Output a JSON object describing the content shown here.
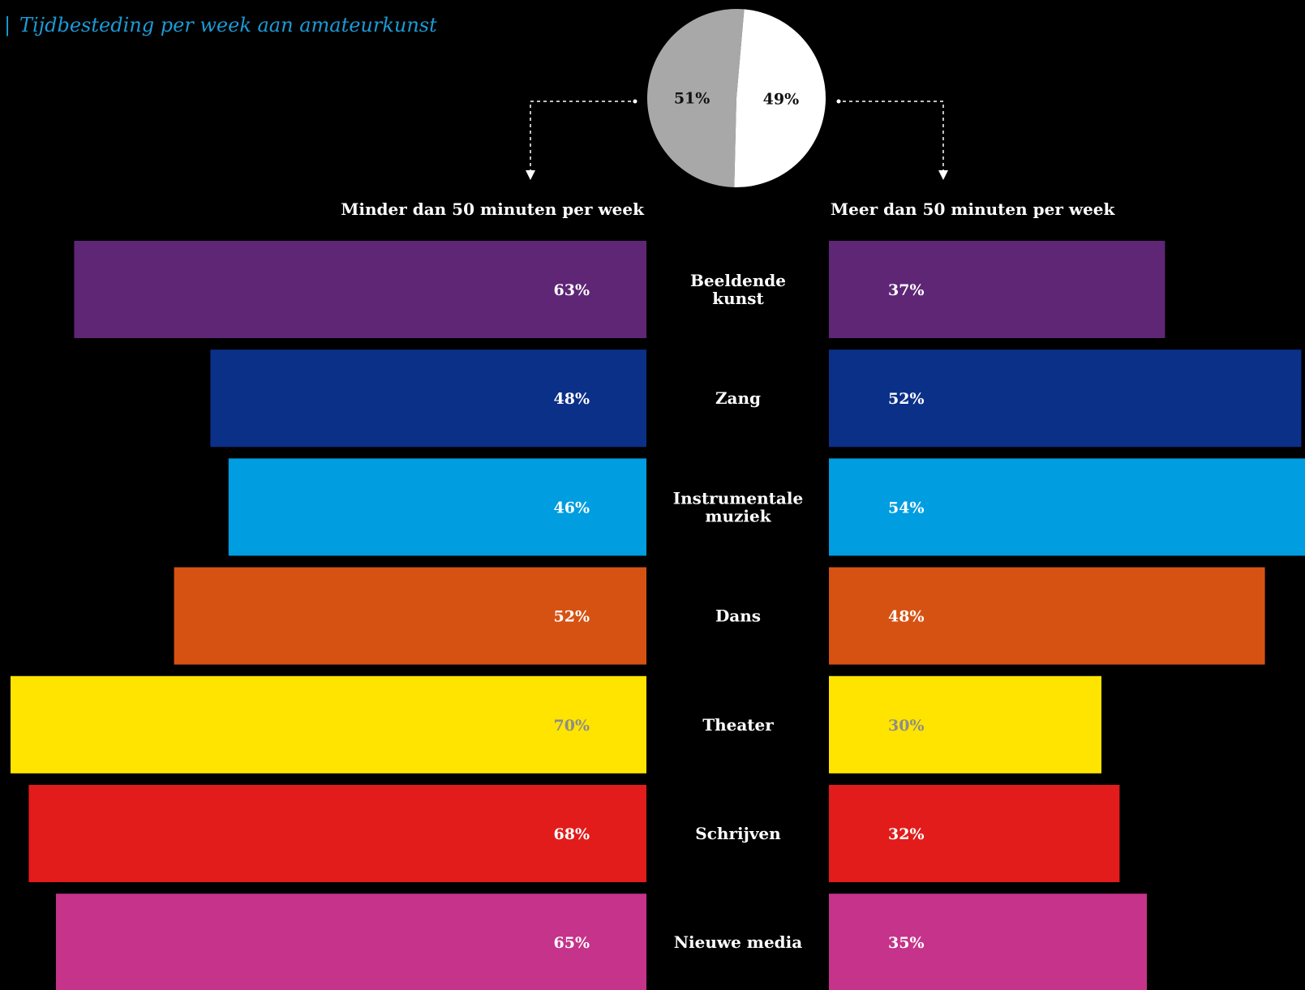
{
  "title": "Tijdbesteding per week aan amateurkunst",
  "title_marker": "|",
  "colors": {
    "background": "#000000",
    "title": "#1b9ad6",
    "text": "#ffffff",
    "dark_label": "#8c8c8c",
    "pie_less": "#a8a8a8",
    "pie_more": "#ffffff",
    "connector": "#ffffff"
  },
  "chart_data": [
    {
      "type": "pie",
      "slices": [
        {
          "label": "51%",
          "value": 51,
          "color": "#a8a8a8",
          "points_to": "Minder dan 50 minuten per week"
        },
        {
          "label": "49%",
          "value": 49,
          "color": "#ffffff",
          "points_to": "Meer dan 50 minuten per week"
        }
      ]
    },
    {
      "type": "bar",
      "orientation": "horizontal-diverging",
      "left_heading": "Minder dan 50 minuten per week",
      "right_heading": "Meer dan 50 minuten per week",
      "xlim": [
        0,
        70
      ],
      "categories": [
        {
          "name": "Beeldende kunst",
          "lines": [
            "Beeldende",
            "kunst"
          ],
          "left": 63,
          "right": 37,
          "left_label": "63%",
          "right_label": "37%",
          "color": "#5e2675",
          "label_color": "#ffffff"
        },
        {
          "name": "Zang",
          "lines": [
            "Zang"
          ],
          "left": 48,
          "right": 52,
          "left_label": "48%",
          "right_label": "52%",
          "color": "#0b3088",
          "label_color": "#ffffff"
        },
        {
          "name": "Instrumentale muziek",
          "lines": [
            "Instrumentale",
            "muziek"
          ],
          "left": 46,
          "right": 54,
          "left_label": "46%",
          "right_label": "54%",
          "color": "#009de0",
          "label_color": "#ffffff"
        },
        {
          "name": "Dans",
          "lines": [
            "Dans"
          ],
          "left": 52,
          "right": 48,
          "left_label": "52%",
          "right_label": "48%",
          "color": "#d65213",
          "label_color": "#ffffff"
        },
        {
          "name": "Theater",
          "lines": [
            "Theater"
          ],
          "left": 70,
          "right": 30,
          "left_label": "70%",
          "right_label": "30%",
          "color": "#ffe400",
          "label_color": "#8c8c8c"
        },
        {
          "name": "Schrijven",
          "lines": [
            "Schrijven"
          ],
          "left": 68,
          "right": 32,
          "left_label": "68%",
          "right_label": "32%",
          "color": "#e11c1b",
          "label_color": "#ffffff"
        },
        {
          "name": "Nieuwe media",
          "lines": [
            "Nieuwe media"
          ],
          "left": 65,
          "right": 35,
          "left_label": "65%",
          "right_label": "35%",
          "color": "#c5338a",
          "label_color": "#ffffff"
        }
      ]
    }
  ]
}
